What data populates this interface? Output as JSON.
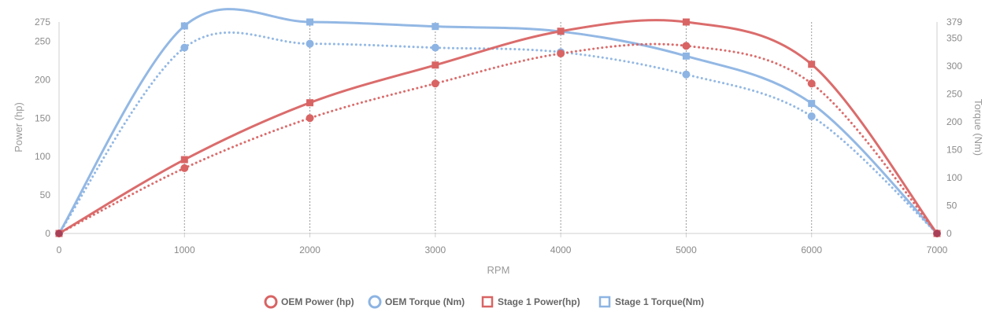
{
  "chart_data": {
    "type": "line",
    "xlabel": "RPM",
    "ylabel_left": "Power (hp)",
    "ylabel_right": "Torque (Nm)",
    "x": [
      0,
      1000,
      2000,
      3000,
      4000,
      5000,
      6000,
      7000
    ],
    "xlim": [
      0,
      7000
    ],
    "ylim_left": [
      0,
      275
    ],
    "ylim_right": [
      0,
      379
    ],
    "x_ticks": [
      0,
      1000,
      2000,
      3000,
      4000,
      5000,
      6000,
      7000
    ],
    "y_ticks_left": [
      0,
      50,
      100,
      150,
      200,
      250,
      275
    ],
    "y_ticks_right": [
      0,
      50,
      100,
      150,
      200,
      250,
      300,
      350,
      379
    ],
    "grid": "vertical dotted lines at x ticks 1000-6000",
    "legend_position": "bottom",
    "series": [
      {
        "name": "OEM Power (hp)",
        "axis": "left",
        "values": [
          0,
          85,
          150,
          195,
          234,
          244,
          195,
          0
        ],
        "color": "#d96464",
        "style": "dotted",
        "marker": "circle"
      },
      {
        "name": "OEM Torque (Nm)",
        "axis": "right",
        "values": [
          0,
          333,
          340,
          333,
          325,
          285,
          210,
          0
        ],
        "color": "#8db4e3",
        "style": "dotted",
        "marker": "circle"
      },
      {
        "name": "Stage 1 Power(hp)",
        "axis": "left",
        "values": [
          0,
          96,
          170,
          219,
          263,
          275,
          220,
          0
        ],
        "color": "#d96464",
        "style": "solid",
        "marker": "square"
      },
      {
        "name": "Stage 1 Torque(Nm)",
        "axis": "right",
        "values": [
          0,
          372,
          379,
          371,
          362,
          318,
          233,
          0
        ],
        "color": "#8db4e3",
        "style": "solid",
        "marker": "square"
      }
    ]
  }
}
